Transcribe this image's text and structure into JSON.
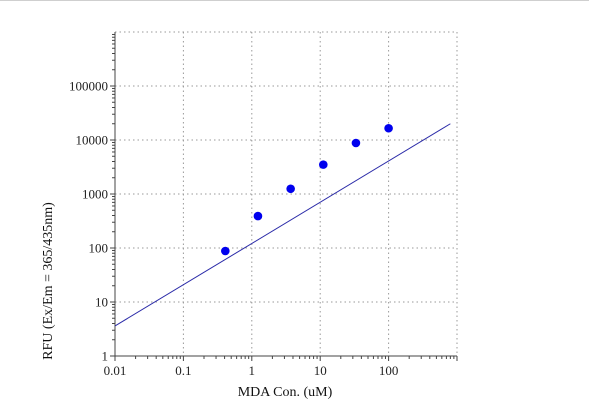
{
  "chart_data": {
    "type": "scatter",
    "x_scale": "log",
    "y_scale": "log",
    "xlabel": "MDA Con. (uM)",
    "ylabel": "RFU (Ex/Em = 365/435nm)",
    "xlim": [
      0.01,
      1000
    ],
    "ylim": [
      1,
      1000000
    ],
    "x_ticks": [
      {
        "value": 0.01,
        "label": "0.01"
      },
      {
        "value": 0.1,
        "label": "0.1"
      },
      {
        "value": 1,
        "label": "1"
      },
      {
        "value": 10,
        "label": "10"
      },
      {
        "value": 100,
        "label": "100"
      }
    ],
    "y_ticks": [
      {
        "value": 1,
        "label": "1"
      },
      {
        "value": 10,
        "label": "10"
      },
      {
        "value": 100,
        "label": "100"
      },
      {
        "value": 1000,
        "label": "1000"
      },
      {
        "value": 10000,
        "label": "10000"
      },
      {
        "value": 100000,
        "label": "100000"
      }
    ],
    "grid": true,
    "points": [
      {
        "x": 0.41,
        "y": 88
      },
      {
        "x": 1.23,
        "y": 390
      },
      {
        "x": 3.7,
        "y": 1250
      },
      {
        "x": 11.1,
        "y": 3500
      },
      {
        "x": 33.3,
        "y": 8800
      },
      {
        "x": 100,
        "y": 16500
      }
    ],
    "fit_line": {
      "x": [
        0.01,
        800
      ],
      "y": [
        3.6,
        20000
      ]
    },
    "marker_color": "#0000ee",
    "line_color": "#2a2aa8"
  }
}
